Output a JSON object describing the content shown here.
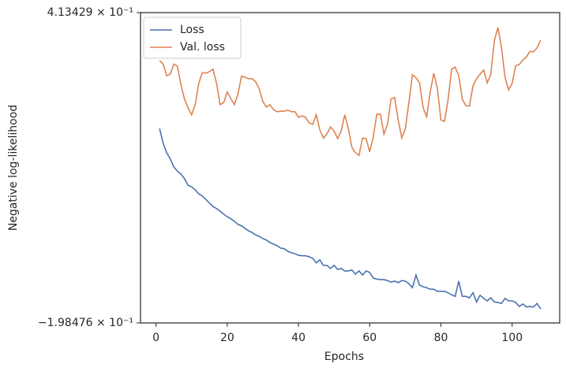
{
  "chart_data": {
    "type": "line",
    "xlabel": "Epochs",
    "ylabel": "Negative log-likelihood",
    "x": [
      1,
      2,
      3,
      4,
      5,
      6,
      7,
      8,
      9,
      10,
      11,
      12,
      13,
      14,
      15,
      16,
      17,
      18,
      19,
      20,
      21,
      22,
      23,
      24,
      25,
      26,
      27,
      28,
      29,
      30,
      31,
      32,
      33,
      34,
      35,
      36,
      37,
      38,
      39,
      40,
      41,
      42,
      43,
      44,
      45,
      46,
      47,
      48,
      49,
      50,
      51,
      52,
      53,
      54,
      55,
      56,
      57,
      58,
      59,
      60,
      61,
      62,
      63,
      64,
      65,
      66,
      67,
      68,
      69,
      70,
      71,
      72,
      73,
      74,
      75,
      76,
      77,
      78,
      79,
      80,
      81,
      82,
      83,
      84,
      85,
      86,
      87,
      88,
      89,
      90,
      91,
      92,
      93,
      94,
      95,
      96,
      97,
      98,
      99,
      100,
      101,
      102,
      103,
      104,
      105,
      106,
      107,
      108
    ],
    "series": [
      {
        "name": "Loss",
        "color": "#4c72b0",
        "values": [
          0.185,
          0.156,
          0.137,
          0.125,
          0.109,
          0.101,
          0.095,
          0.086,
          0.073,
          0.07,
          0.064,
          0.056,
          0.052,
          0.045,
          0.038,
          0.031,
          0.027,
          0.022,
          0.016,
          0.011,
          0.007,
          0.002,
          -0.004,
          -0.007,
          -0.012,
          -0.017,
          -0.02,
          -0.025,
          -0.028,
          -0.032,
          -0.035,
          -0.04,
          -0.043,
          -0.046,
          -0.051,
          -0.052,
          -0.057,
          -0.06,
          -0.062,
          -0.065,
          -0.066,
          -0.066,
          -0.068,
          -0.071,
          -0.08,
          -0.074,
          -0.085,
          -0.085,
          -0.091,
          -0.085,
          -0.093,
          -0.091,
          -0.096,
          -0.096,
          -0.094,
          -0.102,
          -0.096,
          -0.104,
          -0.096,
          -0.099,
          -0.11,
          -0.112,
          -0.113,
          -0.113,
          -0.115,
          -0.118,
          -0.116,
          -0.119,
          -0.115,
          -0.116,
          -0.121,
          -0.129,
          -0.104,
          -0.124,
          -0.127,
          -0.129,
          -0.132,
          -0.132,
          -0.136,
          -0.136,
          -0.136,
          -0.139,
          -0.143,
          -0.146,
          -0.116,
          -0.146,
          -0.146,
          -0.149,
          -0.139,
          -0.157,
          -0.144,
          -0.15,
          -0.155,
          -0.149,
          -0.157,
          -0.158,
          -0.16,
          -0.15,
          -0.155,
          -0.155,
          -0.158,
          -0.166,
          -0.161,
          -0.167,
          -0.166,
          -0.167,
          -0.16,
          -0.171
        ]
      },
      {
        "name": "Val. loss",
        "color": "#dd8452",
        "values": [
          0.319,
          0.312,
          0.289,
          0.292,
          0.312,
          0.308,
          0.271,
          0.243,
          0.226,
          0.212,
          0.232,
          0.274,
          0.295,
          0.294,
          0.297,
          0.302,
          0.274,
          0.232,
          0.236,
          0.257,
          0.244,
          0.232,
          0.252,
          0.288,
          0.286,
          0.283,
          0.283,
          0.277,
          0.263,
          0.238,
          0.227,
          0.232,
          0.222,
          0.218,
          0.219,
          0.219,
          0.221,
          0.218,
          0.218,
          0.207,
          0.21,
          0.207,
          0.196,
          0.193,
          0.212,
          0.182,
          0.166,
          0.174,
          0.188,
          0.18,
          0.165,
          0.18,
          0.212,
          0.185,
          0.148,
          0.137,
          0.132,
          0.166,
          0.165,
          0.139,
          0.168,
          0.213,
          0.213,
          0.174,
          0.193,
          0.243,
          0.246,
          0.202,
          0.166,
          0.184,
          0.236,
          0.291,
          0.285,
          0.275,
          0.226,
          0.208,
          0.257,
          0.294,
          0.264,
          0.202,
          0.199,
          0.241,
          0.302,
          0.306,
          0.289,
          0.243,
          0.23,
          0.229,
          0.269,
          0.283,
          0.292,
          0.3,
          0.275,
          0.291,
          0.358,
          0.384,
          0.345,
          0.286,
          0.261,
          0.274,
          0.309,
          0.311,
          0.32,
          0.326,
          0.337,
          0.336,
          0.344,
          0.359
        ]
      }
    ],
    "xlim": [
      -4.35,
      113.35
    ],
    "xticks": [
      0,
      20,
      40,
      60,
      80,
      100
    ],
    "ylim": [
      -0.198476,
      0.413429
    ],
    "yticks": [
      {
        "value": -0.198476,
        "label": "−1.98476 × 10⁻¹"
      },
      {
        "value": 0.413429,
        "label": "4.13429 × 10⁻¹"
      }
    ],
    "legend": "upper left"
  }
}
